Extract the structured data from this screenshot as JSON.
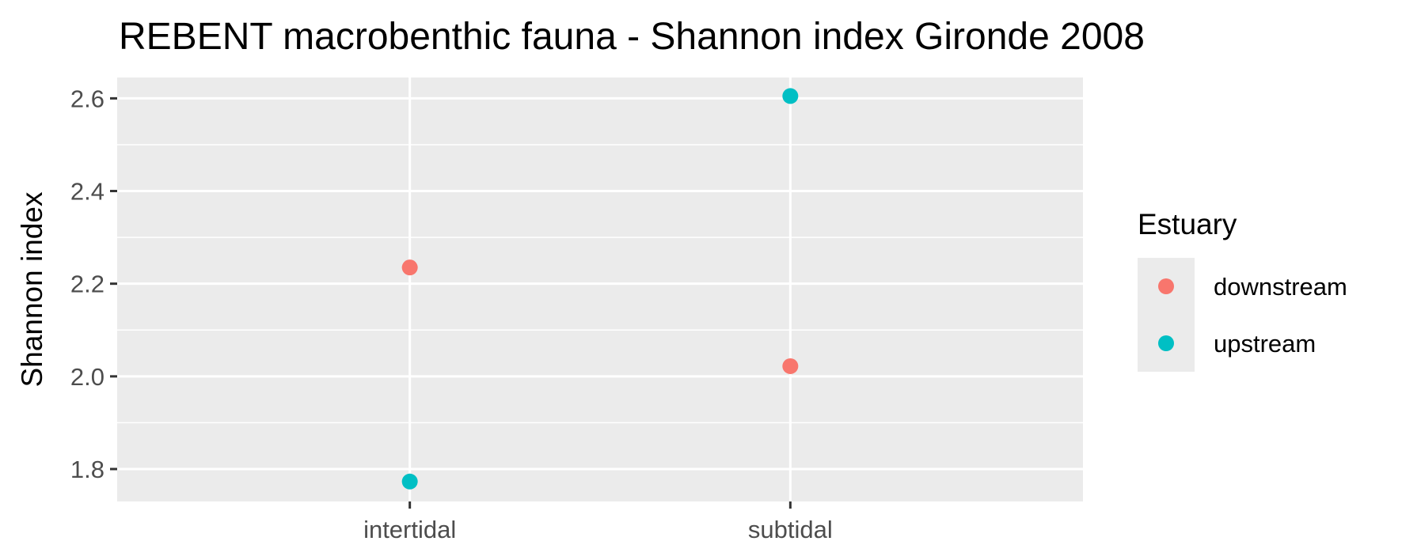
{
  "chart_data": {
    "type": "scatter",
    "title": "REBENT macrobenthic fauna - Shannon index Gironde 2008",
    "xlabel": "",
    "ylabel": "Shannon index",
    "categories": [
      "intertidal",
      "subtidal"
    ],
    "ylim": [
      1.73,
      2.645
    ],
    "yticks": [
      "1.8",
      "2.0",
      "2.2",
      "2.4",
      "2.6"
    ],
    "grid": true,
    "legend": {
      "title": "Estuary",
      "position": "right",
      "entries": [
        "downstream",
        "upstream"
      ]
    },
    "series": [
      {
        "name": "downstream",
        "color": "#F8766D",
        "values": [
          2.235,
          2.022
        ]
      },
      {
        "name": "upstream",
        "color": "#00BFC4",
        "values": [
          1.773,
          2.605
        ]
      }
    ]
  }
}
